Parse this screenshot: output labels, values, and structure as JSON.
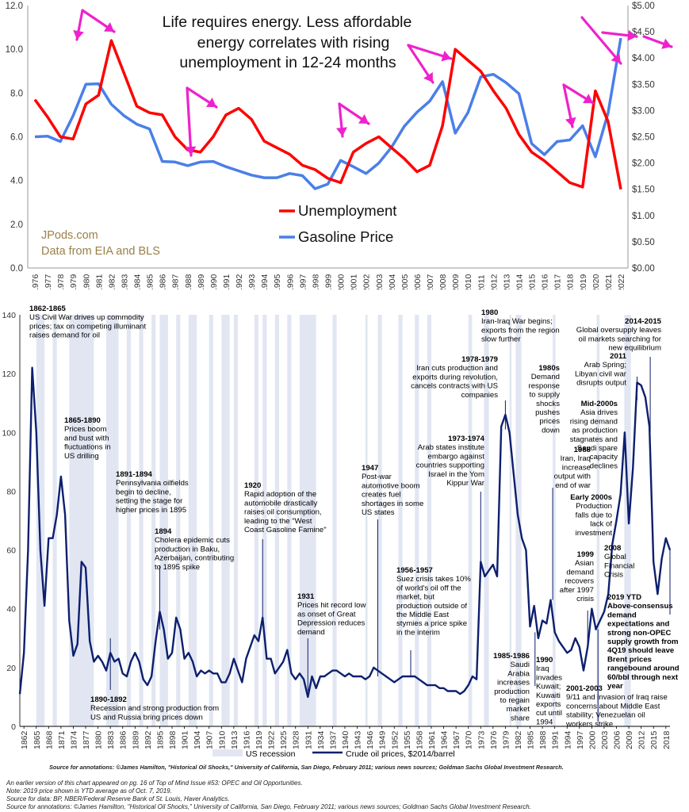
{
  "colors": {
    "unemployment": "#ff0000",
    "gasoline": "#4a7fe8",
    "arrows": "#ee22cc",
    "oil_line": "#0d1f6e",
    "recession": "#e1e6f2",
    "ytd_text": "#cc0000",
    "jpods_text": "#9b8048"
  },
  "top": {
    "title_lines": [
      "Life requires energy. Less affordable",
      "energy correlates with rising",
      "unemployment in 12-24 months"
    ],
    "legend_unemployment": "Unemployment",
    "legend_gasoline": "Gasoline Price",
    "credit_1": "JPods.com",
    "credit_2": "Data from EIA and BLS"
  },
  "bottom": {
    "legend_recession": "US recession",
    "legend_oil": "Crude oil prices, $2014/barrel",
    "source_bold": "Source for annotations: ©James Hamilton, \"Historical Oil Shocks,\" University of California, San Diego, February 2011; various news sources; Goldman Sachs Global Investment Research."
  },
  "footnotes": [
    "An earlier version of this chart appeared on pg. 16 of Top of Mind Issue #53: OPEC and Oil Opportunities.",
    "Note: 2019 price shown is YTD average as of Oct. 7, 2019.",
    "Source for data: BP, NBER/Federal Reserve Bank of St. Louis, Haver Analytics.",
    "Source for annotations: ©James Hamilton, \"Historical Oil Shocks,\" University of California, San Diego, February 2011; various news sources; Goldman Sachs Global Investment Research."
  ],
  "annotations": [
    {
      "id": "a1862",
      "lines": [
        "1862-1865",
        "US Civil War drives up commodity",
        "prices; tax on competing illuminant",
        "raises demand for oil"
      ]
    },
    {
      "id": "a1865",
      "lines": [
        "1865-1890",
        "Prices boom",
        "and bust with",
        "fluctuations in",
        "US drilling"
      ]
    },
    {
      "id": "a1891",
      "lines": [
        "1891-1894",
        "Pennsylvania oilfields",
        "begin to decline,",
        "setting the stage for",
        "higher prices in 1895"
      ]
    },
    {
      "id": "a1894",
      "lines": [
        "1894",
        "Cholera epidemic cuts",
        "production in Baku,",
        "Azerbaijan, contributing",
        "to 1895 spike"
      ]
    },
    {
      "id": "a1890",
      "lines": [
        "1890-1892",
        "Recession and strong production from",
        "US and Russia bring prices down"
      ]
    },
    {
      "id": "a1920",
      "lines": [
        "1920",
        "Rapid adoption of the",
        "automobile drastically",
        "raises oil consumption,",
        "leading to the \"West",
        "Coast Gasoline Famine\""
      ]
    },
    {
      "id": "a1931",
      "lines": [
        "1931",
        "Prices hit record low",
        "as onset of Great",
        "Depression reduces",
        "demand"
      ]
    },
    {
      "id": "a1947",
      "lines": [
        "1947",
        "Post-war",
        "automotive boom",
        "creates fuel",
        "shortages in some",
        "US states"
      ]
    },
    {
      "id": "a1956",
      "lines": [
        "1956-1957",
        "Suez crisis takes 10%",
        "of world's oil off the",
        "market, but",
        "production outside of",
        "the Middle East",
        "stymies a price spike",
        "in the interim"
      ]
    },
    {
      "id": "a1973",
      "lines": [
        "1973-1974",
        "Arab states institute",
        "embargo against",
        "countries supporting",
        "Israel in the Yom",
        "Kippur War"
      ]
    },
    {
      "id": "a1978",
      "lines": [
        "1978-1979",
        "Iran cuts production and",
        "exports during revolution,",
        "cancels contracts with US",
        "companies"
      ]
    },
    {
      "id": "a1980",
      "lines": [
        "1980",
        "Iran-Iraq War begins;",
        "exports from the region",
        "slow further"
      ]
    },
    {
      "id": "a1980s",
      "lines": [
        "1980s",
        "Demand",
        "response",
        "to supply",
        "shocks",
        "pushes",
        "prices",
        "down"
      ]
    },
    {
      "id": "a1985",
      "lines": [
        "1985-1986",
        "Saudi",
        "Arabia",
        "increases",
        "production",
        "to regain",
        "market",
        "share"
      ]
    },
    {
      "id": "a1988",
      "lines": [
        "1988",
        "Iran, Iraq",
        "increase",
        "output with",
        "end of war"
      ]
    },
    {
      "id": "a1990",
      "lines": [
        "1990",
        "Iraq",
        "invades",
        "Kuwait;",
        "Kuwaiti",
        "exports",
        "cut until",
        "1994"
      ]
    },
    {
      "id": "a2000s",
      "lines": [
        "Early 2000s",
        "Production",
        "falls due to",
        "lack of",
        "investment"
      ]
    },
    {
      "id": "a1999",
      "lines": [
        "1999",
        "Asian",
        "demand",
        "recovers",
        "after 1997",
        "crisis"
      ]
    },
    {
      "id": "a2001",
      "lines": [
        "2001-2003",
        "9/11 and invasion of Iraq raise",
        "concerns about Middle East",
        "stability; Venezuelan oil",
        "workers strike"
      ]
    },
    {
      "id": "amid",
      "lines": [
        "Mid-2000s",
        "Asia drives",
        "rising demand",
        "as production",
        "stagnates and",
        "Saudi spare",
        "capacity",
        "declines"
      ]
    },
    {
      "id": "a2008",
      "lines": [
        "2008",
        "Global",
        "Financial",
        "Crisis"
      ]
    },
    {
      "id": "a2011",
      "lines": [
        "2011",
        "Arab Spring;",
        "Libyan civil war",
        "disrupts output"
      ]
    },
    {
      "id": "a2014",
      "lines": [
        "2014-2015",
        "Global oversupply leaves",
        "oil markets searching for",
        "new equilibrium"
      ]
    },
    {
      "id": "a2019",
      "lines": [
        "2019 YTD",
        "Above-consensus",
        "demand",
        "expectations and",
        "strong non-OPEC",
        "supply growth from",
        "4Q19 should leave",
        "Brent prices",
        "rangebound around",
        "60/bbl through next",
        "year"
      ]
    }
  ],
  "chart_data": [
    {
      "type": "line",
      "title": "Life requires energy. Less affordable energy correlates with rising unemployment in 12-24 months",
      "x": [
        1976,
        1977,
        1978,
        1979,
        1980,
        1981,
        1982,
        1983,
        1984,
        1985,
        1986,
        1987,
        1988,
        1989,
        1990,
        1991,
        1992,
        1993,
        1994,
        1995,
        1996,
        1997,
        1998,
        1999,
        2000,
        2001,
        2002,
        2003,
        2004,
        2005,
        2006,
        2007,
        2008,
        2009,
        2010,
        2011,
        2012,
        2013,
        2014,
        2015,
        2016,
        2017,
        2018,
        2019,
        2020,
        2021,
        2022
      ],
      "x_ticks": [
        "1976",
        "1977",
        "1978",
        "1979",
        "1980",
        "1981",
        "1982",
        "1983",
        "1984",
        "1985",
        "1986",
        "1987",
        "1988",
        "1989",
        "1990",
        "1991",
        "1992",
        "1993",
        "1994",
        "1995",
        "1996",
        "1997",
        "1998",
        "1999",
        "2000",
        "2001",
        "2002",
        "2003",
        "2004",
        "2005",
        "2006",
        "2007",
        "2008",
        "2009",
        "2010",
        "2011",
        "2012",
        "2013",
        "2014",
        "2015",
        "2016",
        "2017",
        "2018",
        "2019",
        "2020",
        "2021",
        "2022"
      ],
      "y_left_ticks": [
        "0.0",
        "2.0",
        "4.0",
        "6.0",
        "8.0",
        "10.0",
        "12.0"
      ],
      "y_right_ticks": [
        "$0.00",
        "$0.50",
        "$1.00",
        "$1.50",
        "$2.00",
        "$2.50",
        "$3.00",
        "$3.50",
        "$4.00",
        "$4.50",
        "$5.00"
      ],
      "ylim_left": [
        0,
        12
      ],
      "ylim_right": [
        0,
        5
      ],
      "grid": false,
      "series": [
        {
          "name": "Unemployment",
          "axis": "left",
          "values": [
            7.7,
            6.9,
            6.0,
            5.9,
            7.5,
            7.9,
            10.4,
            8.9,
            7.4,
            7.1,
            7.0,
            6.0,
            5.4,
            5.3,
            6.0,
            7.0,
            7.3,
            6.8,
            5.8,
            5.5,
            5.2,
            4.7,
            4.5,
            4.1,
            3.9,
            5.3,
            5.7,
            6.0,
            5.5,
            5.0,
            4.4,
            4.7,
            6.5,
            10.0,
            9.5,
            9.0,
            8.1,
            7.3,
            6.1,
            5.3,
            4.9,
            4.4,
            3.9,
            3.7,
            8.1,
            6.7,
            3.6
          ]
        },
        {
          "name": "Gasoline Price",
          "axis": "right",
          "values": [
            2.5,
            2.51,
            2.41,
            2.9,
            3.5,
            3.51,
            3.12,
            2.9,
            2.74,
            2.65,
            2.03,
            2.02,
            1.95,
            2.02,
            2.03,
            1.93,
            1.85,
            1.77,
            1.72,
            1.72,
            1.8,
            1.76,
            1.51,
            1.6,
            2.05,
            1.93,
            1.8,
            2.0,
            2.3,
            2.7,
            2.97,
            3.18,
            3.55,
            2.57,
            2.96,
            3.64,
            3.69,
            3.53,
            3.32,
            2.37,
            2.16,
            2.41,
            2.44,
            2.71,
            2.12,
            2.95,
            4.38
          ]
        }
      ]
    },
    {
      "type": "line",
      "title": "",
      "xlabel": "",
      "ylabel": "",
      "ylim": [
        0,
        140
      ],
      "xlim": [
        1861,
        2019
      ],
      "y_ticks": [
        "0",
        "20",
        "40",
        "60",
        "80",
        "100",
        "120",
        "140"
      ],
      "x_ticks": [
        "1862",
        "1865",
        "1868",
        "1871",
        "1874",
        "1877",
        "1880",
        "1883",
        "1886",
        "1889",
        "1892",
        "1895",
        "1898",
        "1901",
        "1904",
        "1907",
        "1910",
        "1913",
        "1916",
        "1919",
        "1922",
        "1925",
        "1928",
        "1931",
        "1934",
        "1937",
        "1940",
        "1943",
        "1946",
        "1949",
        "1952",
        "1955",
        "1958",
        "1961",
        "1964",
        "1967",
        "1970",
        "1973",
        "1976",
        "1979",
        "1982",
        "1985",
        "1988",
        "1991",
        "1994",
        "1997",
        "2000",
        "2003",
        "2006",
        "2009",
        "2012",
        "2015",
        "2018"
      ],
      "recessions": [
        [
          1865,
          1867
        ],
        [
          1869,
          1870
        ],
        [
          1873,
          1879
        ],
        [
          1882,
          1885
        ],
        [
          1887,
          1888
        ],
        [
          1890,
          1891
        ],
        [
          1893,
          1894
        ],
        [
          1895,
          1897
        ],
        [
          1899,
          1900
        ],
        [
          1902,
          1904
        ],
        [
          1907,
          1908
        ],
        [
          1910,
          1912
        ],
        [
          1913,
          1914
        ],
        [
          1918,
          1919
        ],
        [
          1920,
          1921
        ],
        [
          1923,
          1924
        ],
        [
          1926,
          1927
        ],
        [
          1929,
          1933
        ],
        [
          1937,
          1938
        ],
        [
          1945,
          1945.5
        ],
        [
          1948,
          1949
        ],
        [
          1953,
          1954
        ],
        [
          1957,
          1958
        ],
        [
          1960,
          1961
        ],
        [
          1970,
          1970.9
        ],
        [
          1973.8,
          1975
        ],
        [
          1980,
          1980.5
        ],
        [
          1981.5,
          1982.9
        ],
        [
          1990.5,
          1991.2
        ],
        [
          2001.2,
          2001.9
        ],
        [
          2007.9,
          2009.5
        ]
      ],
      "series": [
        {
          "name": "Crude oil prices, $2014/barrel",
          "x": [
            1861,
            1862,
            1863,
            1864,
            1865,
            1866,
            1867,
            1868,
            1869,
            1870,
            1871,
            1872,
            1873,
            1874,
            1875,
            1876,
            1877,
            1878,
            1879,
            1880,
            1881,
            1882,
            1883,
            1884,
            1885,
            1886,
            1887,
            1888,
            1889,
            1890,
            1891,
            1892,
            1893,
            1894,
            1895,
            1896,
            1897,
            1898,
            1899,
            1900,
            1901,
            1902,
            1903,
            1904,
            1905,
            1906,
            1907,
            1908,
            1909,
            1910,
            1911,
            1912,
            1913,
            1914,
            1915,
            1916,
            1917,
            1918,
            1919,
            1920,
            1921,
            1922,
            1923,
            1924,
            1925,
            1926,
            1927,
            1928,
            1929,
            1930,
            1931,
            1932,
            1933,
            1934,
            1935,
            1936,
            1937,
            1938,
            1939,
            1940,
            1941,
            1942,
            1943,
            1944,
            1945,
            1946,
            1947,
            1948,
            1949,
            1950,
            1951,
            1952,
            1953,
            1954,
            1955,
            1956,
            1957,
            1958,
            1959,
            1960,
            1961,
            1962,
            1963,
            1964,
            1965,
            1966,
            1967,
            1968,
            1969,
            1970,
            1971,
            1972,
            1973,
            1974,
            1975,
            1976,
            1977,
            1978,
            1979,
            1980,
            1981,
            1982,
            1983,
            1984,
            1985,
            1986,
            1987,
            1988,
            1989,
            1990,
            1991,
            1992,
            1993,
            1994,
            1995,
            1996,
            1997,
            1998,
            1999,
            2000,
            2001,
            2002,
            2003,
            2004,
            2005,
            2006,
            2007,
            2008,
            2009,
            2010,
            2011,
            2012,
            2013,
            2014,
            2015,
            2016,
            2017,
            2018,
            2019
          ],
          "values": [
            11,
            25,
            60,
            122,
            100,
            60,
            41,
            64,
            64,
            72,
            85,
            72,
            36,
            24,
            28,
            56,
            54,
            29,
            22,
            24,
            22,
            19,
            25,
            22,
            23,
            18,
            17,
            22,
            25,
            22,
            16,
            14,
            17,
            29,
            39,
            33,
            23,
            25,
            37,
            33,
            23,
            25,
            22,
            17,
            19,
            18,
            19,
            18,
            18,
            15,
            15,
            18,
            23,
            19,
            15,
            23,
            27,
            31,
            29,
            37,
            23,
            23,
            18,
            20,
            22,
            26,
            18,
            16,
            18,
            16,
            10,
            17,
            13,
            17,
            17,
            18,
            19,
            19,
            18,
            17,
            18,
            17,
            17,
            17,
            16,
            17,
            20,
            19,
            18,
            17,
            16,
            15,
            16,
            17,
            17,
            17,
            17,
            16,
            15,
            14,
            14,
            14,
            13,
            13,
            12,
            12,
            12,
            11,
            12,
            14,
            17,
            16,
            56,
            51,
            53,
            55,
            51,
            102,
            106,
            100,
            86,
            72,
            64,
            60,
            34,
            41,
            30,
            36,
            35,
            43,
            32,
            29,
            27,
            25,
            26,
            30,
            27,
            19,
            27,
            40,
            33,
            36,
            39,
            45,
            62,
            70,
            79,
            100,
            69,
            88,
            117,
            116,
            112,
            102,
            56,
            45,
            57,
            64,
            60
          ]
        }
      ]
    }
  ]
}
